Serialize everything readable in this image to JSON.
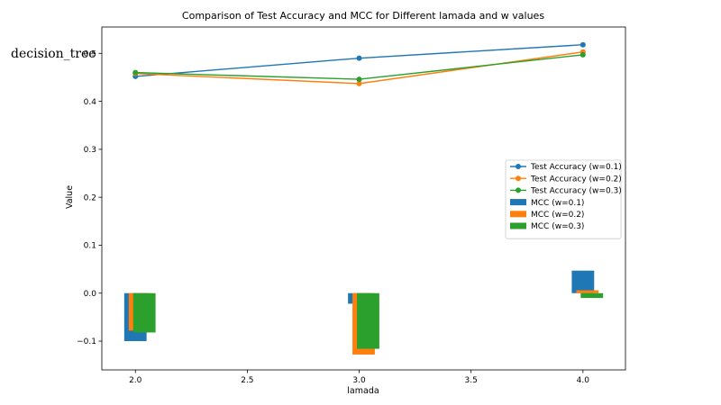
{
  "side_label": "decision_tree",
  "chart_data": {
    "type": "line",
    "title": "Comparison of Test Accuracy and MCC for Different lamada and w values",
    "xlabel": "lamada",
    "ylabel": "Value",
    "xlim": [
      1.85,
      4.19
    ],
    "ylim": [
      -0.16,
      0.555
    ],
    "xticks": [
      2.0,
      2.5,
      3.0,
      3.5,
      4.0
    ],
    "xtick_labels": [
      "2.0",
      "2.5",
      "3.0",
      "3.5",
      "4.0"
    ],
    "yticks": [
      -0.1,
      0.0,
      0.1,
      0.2,
      0.3,
      0.4,
      0.5
    ],
    "ytick_labels": [
      "−0.1",
      "0.0",
      "0.1",
      "0.2",
      "0.3",
      "0.4",
      "0.5"
    ],
    "grid": false,
    "legend_position": "center-right",
    "x": [
      2.0,
      3.0,
      4.0
    ],
    "line_series": [
      {
        "name": "Test Accuracy (w=0.1)",
        "color": "#1f77b4",
        "values": [
          0.452,
          0.49,
          0.518
        ]
      },
      {
        "name": "Test Accuracy (w=0.2)",
        "color": "#ff7f0e",
        "values": [
          0.458,
          0.437,
          0.503
        ]
      },
      {
        "name": "Test Accuracy (w=0.3)",
        "color": "#2ca02c",
        "values": [
          0.46,
          0.446,
          0.497
        ]
      }
    ],
    "bar_series": [
      {
        "name": "MCC (w=0.1)",
        "color": "#1f77b4",
        "values": [
          -0.1,
          -0.022,
          0.047
        ]
      },
      {
        "name": "MCC (w=0.2)",
        "color": "#ff7f0e",
        "values": [
          -0.078,
          -0.128,
          0.006
        ]
      },
      {
        "name": "MCC (w=0.3)",
        "color": "#2ca02c",
        "values": [
          -0.082,
          -0.116,
          -0.01
        ]
      }
    ]
  }
}
